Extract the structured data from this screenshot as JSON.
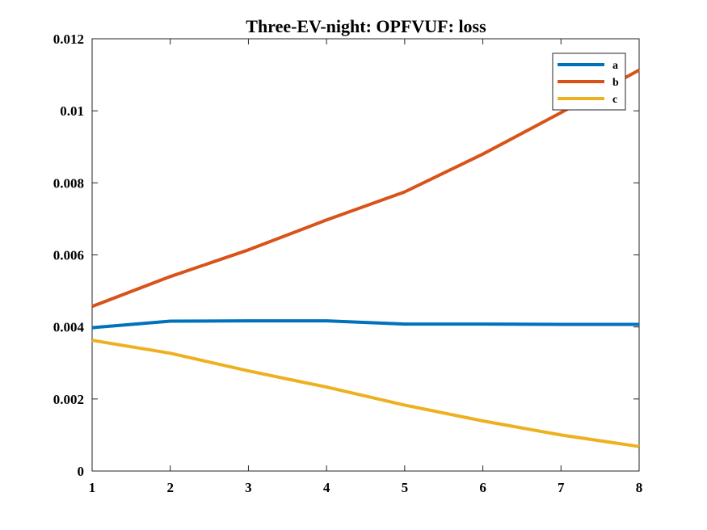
{
  "chart_data": {
    "type": "line",
    "title": "Three-EV-night: OPFVUF: loss",
    "xlabel": "",
    "ylabel": "",
    "x": [
      1,
      2,
      3,
      4,
      5,
      6,
      7,
      8
    ],
    "xlim": [
      1,
      8
    ],
    "ylim": [
      0,
      0.012
    ],
    "x_ticks": [
      "1",
      "2",
      "3",
      "4",
      "5",
      "6",
      "7",
      "8"
    ],
    "y_ticks": [
      "0",
      "0.002",
      "0.004",
      "0.006",
      "0.008",
      "0.01",
      "0.012"
    ],
    "grid": false,
    "legend_position": "top-right",
    "series": [
      {
        "name": "a",
        "color": "#0072BD",
        "values": [
          0.00398,
          0.00416,
          0.00417,
          0.00417,
          0.00408,
          0.00408,
          0.00407,
          0.00407
        ]
      },
      {
        "name": "b",
        "color": "#D95319",
        "values": [
          0.00457,
          0.0054,
          0.00614,
          0.00697,
          0.00775,
          0.0088,
          0.00995,
          0.01113
        ]
      },
      {
        "name": "c",
        "color": "#EDB120",
        "values": [
          0.00363,
          0.00327,
          0.00278,
          0.00233,
          0.00183,
          0.00139,
          0.001,
          0.00068
        ]
      }
    ]
  }
}
